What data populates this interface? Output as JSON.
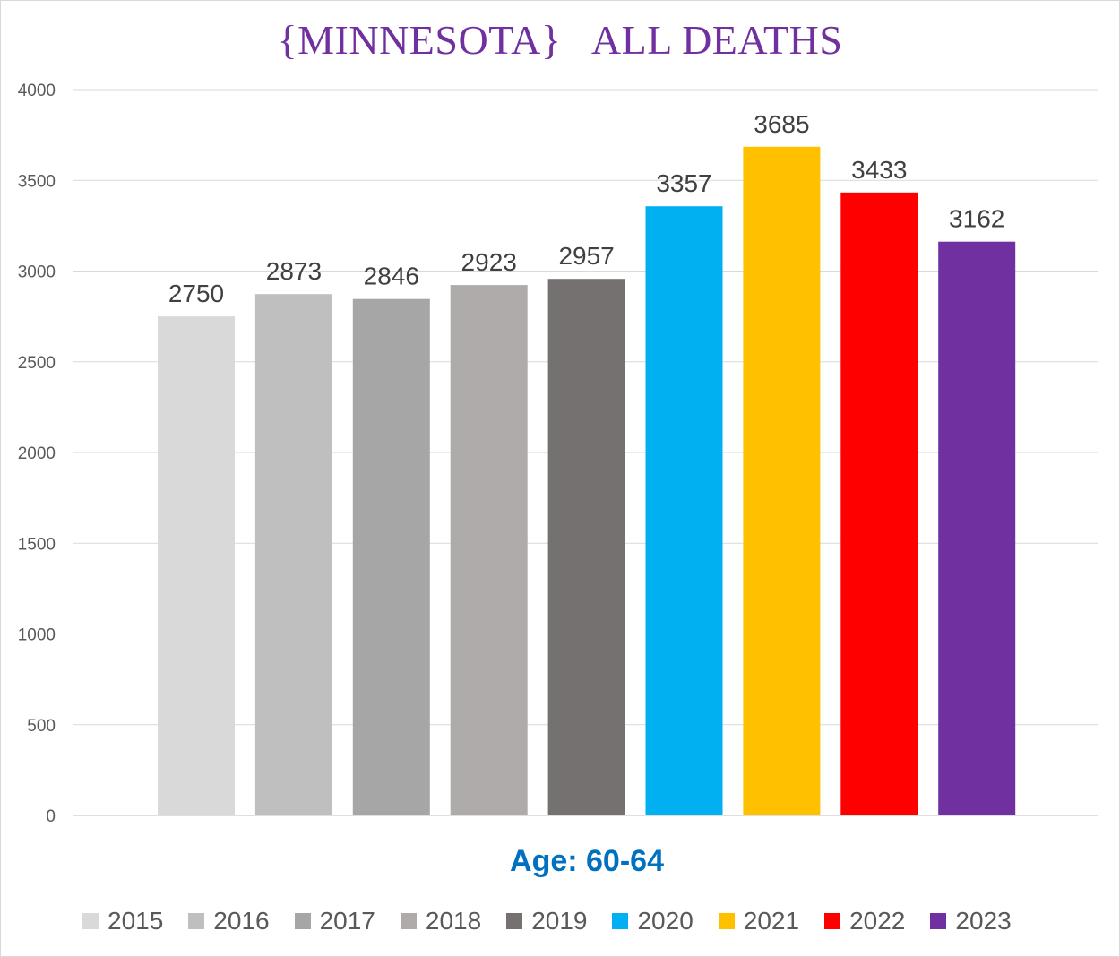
{
  "chart_data": {
    "type": "bar",
    "title": "{MINNESOTA}   ALL DEATHS",
    "xlabel": "Age: 60-64",
    "ylabel": "",
    "ylim": [
      0,
      4000
    ],
    "yticks": [
      0,
      500,
      1000,
      1500,
      2000,
      2500,
      3000,
      3500,
      4000
    ],
    "grid": true,
    "legend_position": "bottom",
    "categories": [
      "2015",
      "2016",
      "2017",
      "2018",
      "2019",
      "2020",
      "2021",
      "2022",
      "2023"
    ],
    "values": [
      2750,
      2873,
      2846,
      2923,
      2957,
      3357,
      3685,
      3433,
      3162
    ],
    "colors": [
      "#d9d9d9",
      "#bfbfbf",
      "#a6a6a6",
      "#afabab",
      "#767171",
      "#00b0f0",
      "#ffc000",
      "#ff0000",
      "#7030a0"
    ]
  }
}
